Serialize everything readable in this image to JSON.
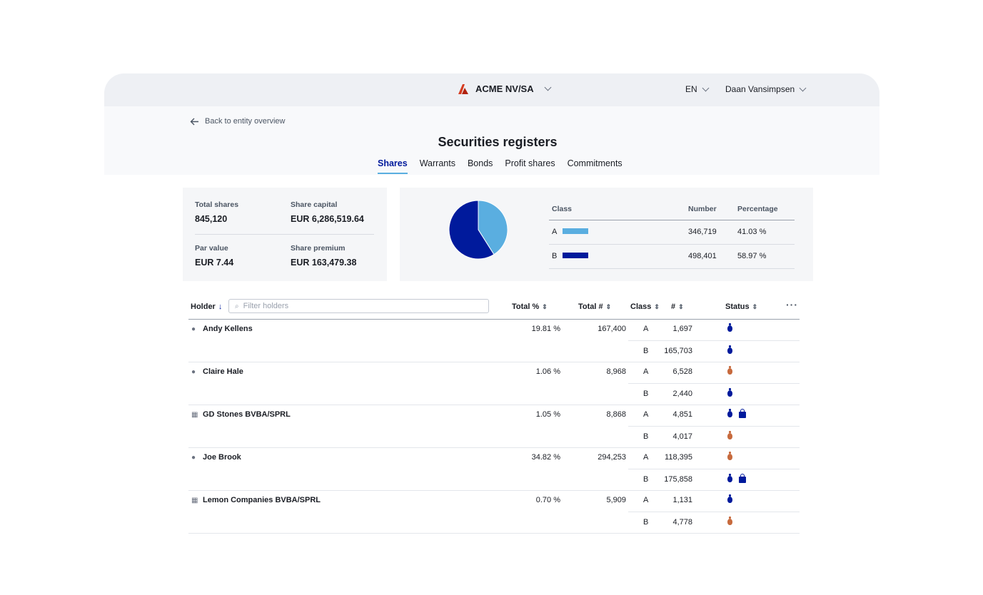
{
  "header": {
    "company": "ACME NV/SA",
    "language": "EN",
    "user": "Daan Vansimpsen",
    "logo_color": "#d63b1f"
  },
  "nav": {
    "back_label": "Back to entity overview",
    "page_title": "Securities registers",
    "tabs": [
      "Shares",
      "Warrants",
      "Bonds",
      "Profit shares",
      "Commitments"
    ],
    "active_tab": "Shares"
  },
  "summary": {
    "total_shares_label": "Total shares",
    "total_shares_value": "845,120",
    "share_capital_label": "Share capital",
    "share_capital_value": "EUR 6,286,519.64",
    "par_value_label": "Par value",
    "par_value_value": "EUR 7.44",
    "share_premium_label": "Share premium",
    "share_premium_value": "EUR 163,479.38"
  },
  "classes": {
    "headers": [
      "Class",
      "Number",
      "Percentage"
    ],
    "rows": [
      {
        "class": "A",
        "number": "346,719",
        "percentage": "41.03 %",
        "color": "#5aaee0"
      },
      {
        "class": "B",
        "number": "498,401",
        "percentage": "58.97 %",
        "color": "#001a9c"
      }
    ]
  },
  "chart_data": {
    "type": "pie",
    "categories": [
      "A",
      "B"
    ],
    "values": [
      41.03,
      58.97
    ],
    "colors": [
      "#5aaee0",
      "#001a9c"
    ]
  },
  "holders_table": {
    "headers": {
      "holder": "Holder",
      "total_pct": "Total %",
      "total_num": "Total #",
      "class": "Class",
      "num": "#",
      "status": "Status"
    },
    "filter_placeholder": "Filter holders",
    "more_label": "···",
    "rows": [
      {
        "name": "Andy Kellens",
        "type": "person",
        "total_pct": "19.81 %",
        "total_num": "167,400",
        "lines": [
          {
            "class": "A",
            "num": "1,697",
            "status": [
              "bag-blue"
            ]
          },
          {
            "class": "B",
            "num": "165,703",
            "status": [
              "bag-blue"
            ]
          }
        ]
      },
      {
        "name": "Claire Hale",
        "type": "person",
        "total_pct": "1.06 %",
        "total_num": "8,968",
        "lines": [
          {
            "class": "A",
            "num": "6,528",
            "status": [
              "bag-orange"
            ]
          },
          {
            "class": "B",
            "num": "2,440",
            "status": [
              "bag-blue"
            ]
          }
        ]
      },
      {
        "name": "GD Stones BVBA/SPRL",
        "type": "company",
        "total_pct": "1.05 %",
        "total_num": "8,868",
        "lines": [
          {
            "class": "A",
            "num": "4,851",
            "status": [
              "bag-blue",
              "lock-blue"
            ]
          },
          {
            "class": "B",
            "num": "4,017",
            "status": [
              "bag-orange"
            ]
          }
        ]
      },
      {
        "name": "Joe Brook",
        "type": "person",
        "total_pct": "34.82 %",
        "total_num": "294,253",
        "lines": [
          {
            "class": "A",
            "num": "118,395",
            "status": [
              "bag-orange"
            ]
          },
          {
            "class": "B",
            "num": "175,858",
            "status": [
              "bag-blue",
              "lock-blue"
            ]
          }
        ]
      },
      {
        "name": "Lemon Companies BVBA/SPRL",
        "type": "company",
        "total_pct": "0.70 %",
        "total_num": "5,909",
        "lines": [
          {
            "class": "A",
            "num": "1,131",
            "status": [
              "bag-blue"
            ]
          },
          {
            "class": "B",
            "num": "4,778",
            "status": [
              "bag-orange"
            ]
          }
        ]
      }
    ]
  }
}
